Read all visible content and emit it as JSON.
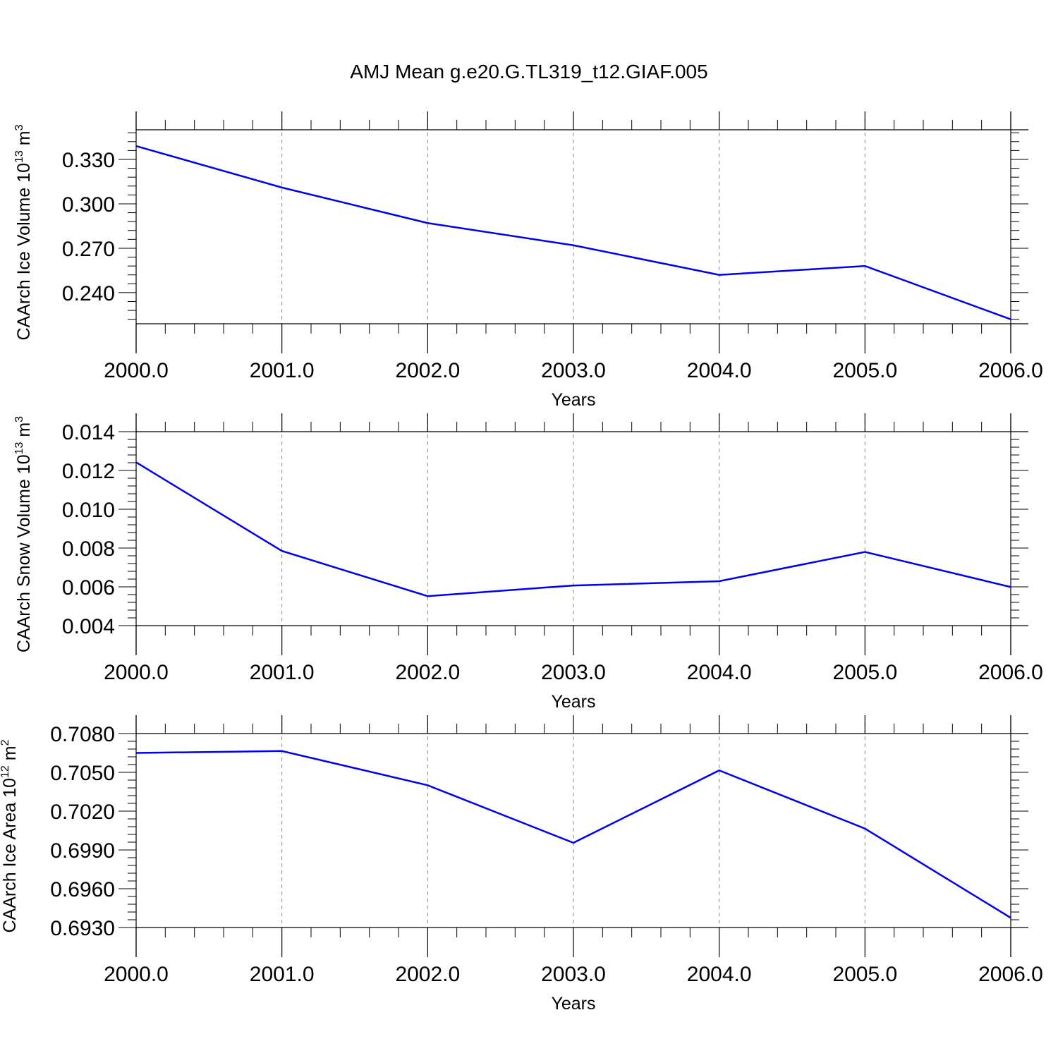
{
  "title": "AMJ Mean g.e20.G.TL319_t12.GIAF.005",
  "colors": {
    "series": "#0000ee",
    "axes": "#000000",
    "grid": "#888888"
  },
  "chart_data": [
    {
      "type": "line",
      "x": [
        2000,
        2001,
        2002,
        2003,
        2004,
        2005,
        2006
      ],
      "xticks": [
        "2000.0",
        "2001.0",
        "2002.0",
        "2003.0",
        "2004.0",
        "2005.0",
        "2006.0"
      ],
      "xlim": [
        2000,
        2006
      ],
      "xlabel": "Years",
      "ylabel": "CAArch Ice Volume 10",
      "ylabel_exp": "13",
      "ylabel_unit": "m",
      "ylabel_unit_exp": "3",
      "ylim": [
        0.219,
        0.35
      ],
      "yticks": [
        "0.330",
        "0.300",
        "0.270",
        "0.240"
      ],
      "ytick_values": [
        0.33,
        0.3,
        0.27,
        0.24
      ],
      "ygrid": false,
      "xgrid": "dashed vertical at major ticks",
      "values": [
        0.339,
        0.311,
        0.287,
        0.272,
        0.252,
        0.258,
        0.222
      ]
    },
    {
      "type": "line",
      "x": [
        2000,
        2001,
        2002,
        2003,
        2004,
        2005,
        2006
      ],
      "xticks": [
        "2000.0",
        "2001.0",
        "2002.0",
        "2003.0",
        "2004.0",
        "2005.0",
        "2006.0"
      ],
      "xlim": [
        2000,
        2006
      ],
      "xlabel": "Years",
      "ylabel": "CAArch Snow Volume 10",
      "ylabel_exp": "13",
      "ylabel_unit": "m",
      "ylabel_unit_exp": "3",
      "ylim": [
        0.004,
        0.014
      ],
      "yticks": [
        "0.014",
        "0.012",
        "0.010",
        "0.008",
        "0.006",
        "0.004"
      ],
      "ytick_values": [
        0.014,
        0.012,
        0.01,
        0.008,
        0.006,
        0.004
      ],
      "values": [
        0.01242,
        0.00785,
        0.00552,
        0.00607,
        0.00629,
        0.0078,
        0.00599
      ]
    },
    {
      "type": "line",
      "x": [
        2000,
        2001,
        2002,
        2003,
        2004,
        2005,
        2006
      ],
      "xticks": [
        "2000.0",
        "2001.0",
        "2002.0",
        "2003.0",
        "2004.0",
        "2005.0",
        "2006.0"
      ],
      "xlim": [
        2000,
        2006
      ],
      "xlabel": "Years",
      "ylabel": "CAArch Ice Area 10",
      "ylabel_exp": "12",
      "ylabel_unit": "m",
      "ylabel_unit_exp": "2",
      "ylim": [
        0.693,
        0.708
      ],
      "yticks": [
        "0.7080",
        "0.7050",
        "0.7020",
        "0.6990",
        "0.6960",
        "0.6930"
      ],
      "ytick_values": [
        0.708,
        0.705,
        0.702,
        0.699,
        0.696,
        0.693
      ],
      "values": [
        0.7065,
        0.70665,
        0.704,
        0.69955,
        0.70515,
        0.70065,
        0.69375
      ]
    }
  ]
}
